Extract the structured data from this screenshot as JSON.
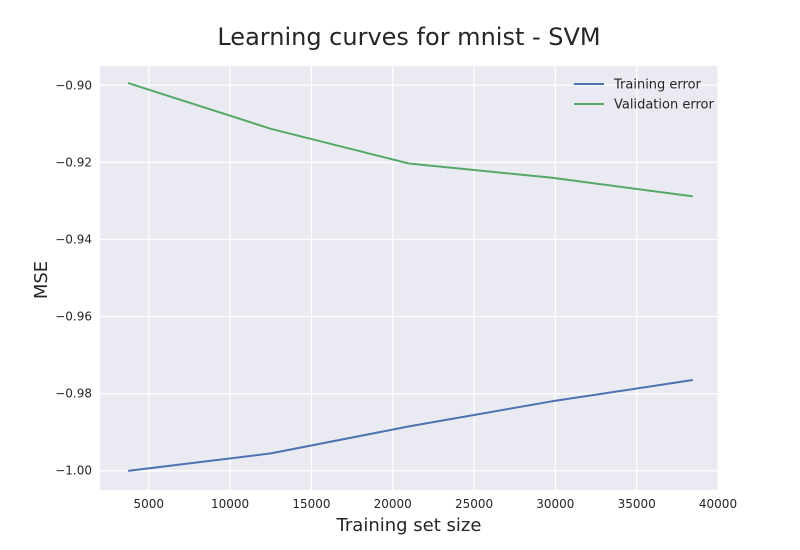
{
  "chart_data": {
    "type": "line",
    "title": "Learning curves for mnist - SVM",
    "xlabel": "Training set size",
    "ylabel": "MSE",
    "xlim": [
      2000,
      40000
    ],
    "ylim": [
      -1.005,
      -0.895
    ],
    "x_ticks": [
      5000,
      10000,
      15000,
      20000,
      25000,
      30000,
      35000,
      40000
    ],
    "x_tick_labels": [
      "5000",
      "10000",
      "15000",
      "20000",
      "25000",
      "30000",
      "35000",
      "40000"
    ],
    "y_ticks": [
      -1.0,
      -0.98,
      -0.96,
      -0.94,
      -0.92,
      -0.9
    ],
    "y_tick_labels": [
      "−1.00",
      "−0.98",
      "−0.96",
      "−0.94",
      "−0.92",
      "−0.90"
    ],
    "grid": true,
    "legend_position": "top-right",
    "x": [
      3780,
      12500,
      21000,
      29800,
      38400
    ],
    "series": [
      {
        "name": "Training error",
        "color": "#4c72b0",
        "values": [
          -1.0,
          -0.9955,
          -0.9885,
          -0.982,
          -0.9765
        ]
      },
      {
        "name": "Validation error",
        "color": "#55a868",
        "values": [
          -0.8995,
          -0.9113,
          -0.9203,
          -0.924,
          -0.9288
        ]
      }
    ]
  }
}
